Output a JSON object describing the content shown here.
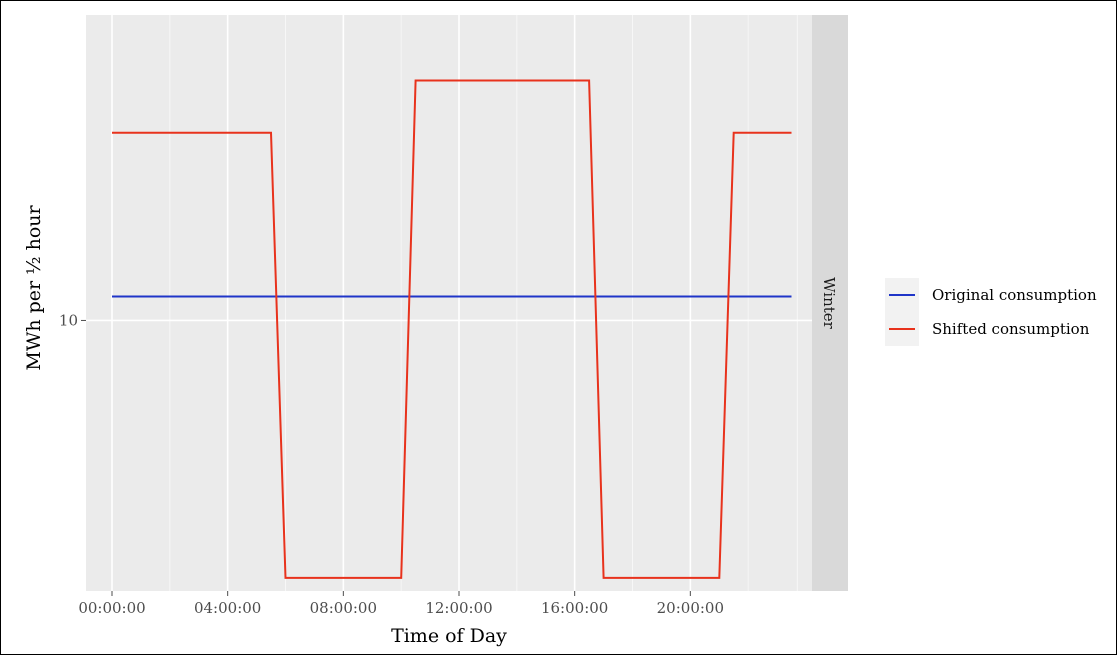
{
  "chart_data": {
    "type": "line",
    "xlabel": "Time of Day",
    "ylabel": "MWh per ½ hour",
    "facet_label": "Winter",
    "x_ticks": [
      "00:00:00",
      "04:00:00",
      "08:00:00",
      "12:00:00",
      "16:00:00",
      "20:00:00"
    ],
    "y_ticks": [
      10
    ],
    "xlim": [
      0,
      24
    ],
    "ylim": [
      3.8,
      17
    ],
    "grid": true,
    "legend_position": "right",
    "series": [
      {
        "name": "Original consumption",
        "color": "#1f35c8",
        "x": [
          0,
          23.5
        ],
        "y": [
          10.55,
          10.55
        ]
      },
      {
        "name": "Shifted consumption",
        "color": "#e8321c",
        "x": [
          0,
          5.5,
          6.0,
          10.0,
          10.5,
          16.5,
          17.0,
          21.0,
          21.5,
          23.5
        ],
        "y": [
          14.3,
          14.3,
          4.1,
          4.1,
          15.5,
          15.5,
          4.1,
          4.1,
          14.3,
          14.3
        ]
      }
    ]
  }
}
